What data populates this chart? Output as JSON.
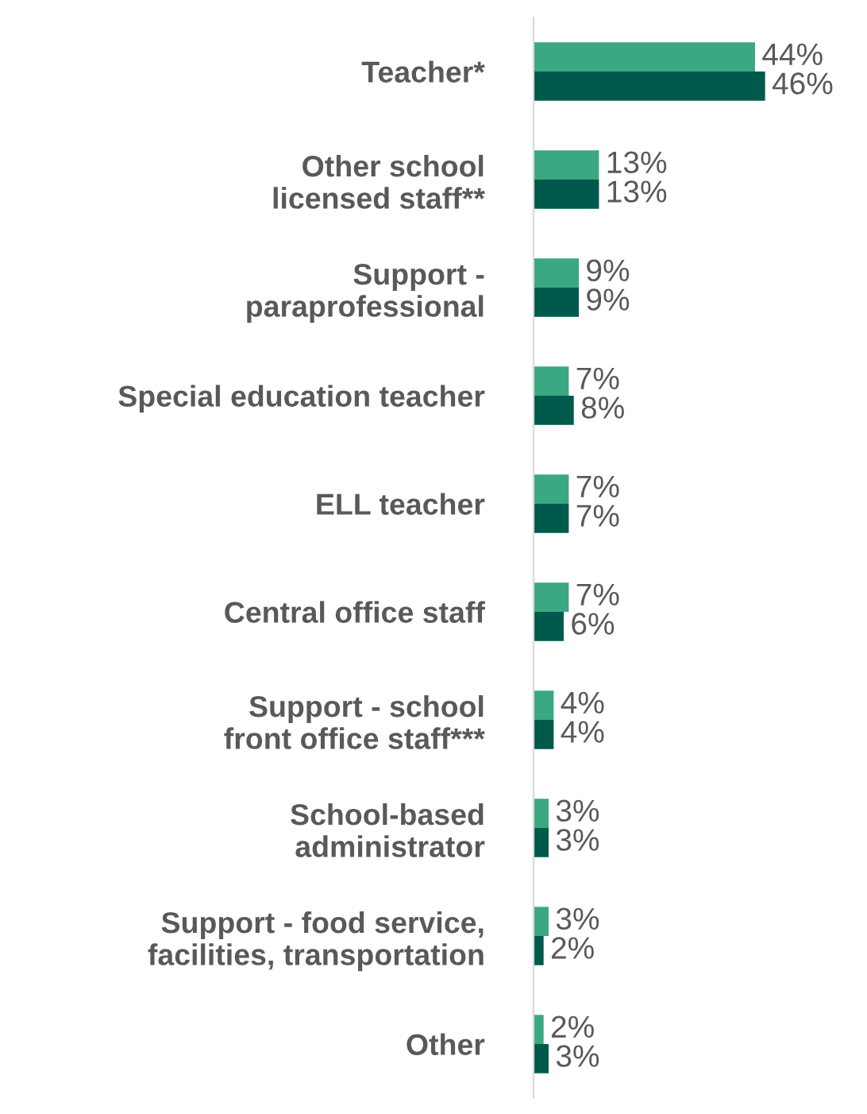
{
  "chart_data": {
    "type": "bar",
    "orientation": "horizontal",
    "categories": [
      "Teacher*",
      "Other school licensed staff**",
      "Support - paraprofessional",
      "Special education teacher",
      "ELL teacher",
      "Central office staff",
      "Support - school front office staff***",
      "School-based administrator",
      "Support - food service, facilities, transportation",
      "Other"
    ],
    "series": [
      {
        "color": "#3aa880",
        "values": [
          44,
          13,
          9,
          7,
          7,
          7,
          4,
          3,
          3,
          2
        ],
        "value_labels": [
          "44%",
          "13%",
          "9%",
          "7%",
          "7%",
          "7%",
          "4%",
          "3%",
          "3%",
          "2%"
        ]
      },
      {
        "color": "#005a4c",
        "values": [
          46,
          13,
          9,
          8,
          7,
          6,
          4,
          3,
          2,
          3
        ],
        "value_labels": [
          "46%",
          "13%",
          "9%",
          "8%",
          "7%",
          "6%",
          "4%",
          "3%",
          "2%",
          "3%"
        ]
      }
    ],
    "grid": false,
    "legend": false
  }
}
